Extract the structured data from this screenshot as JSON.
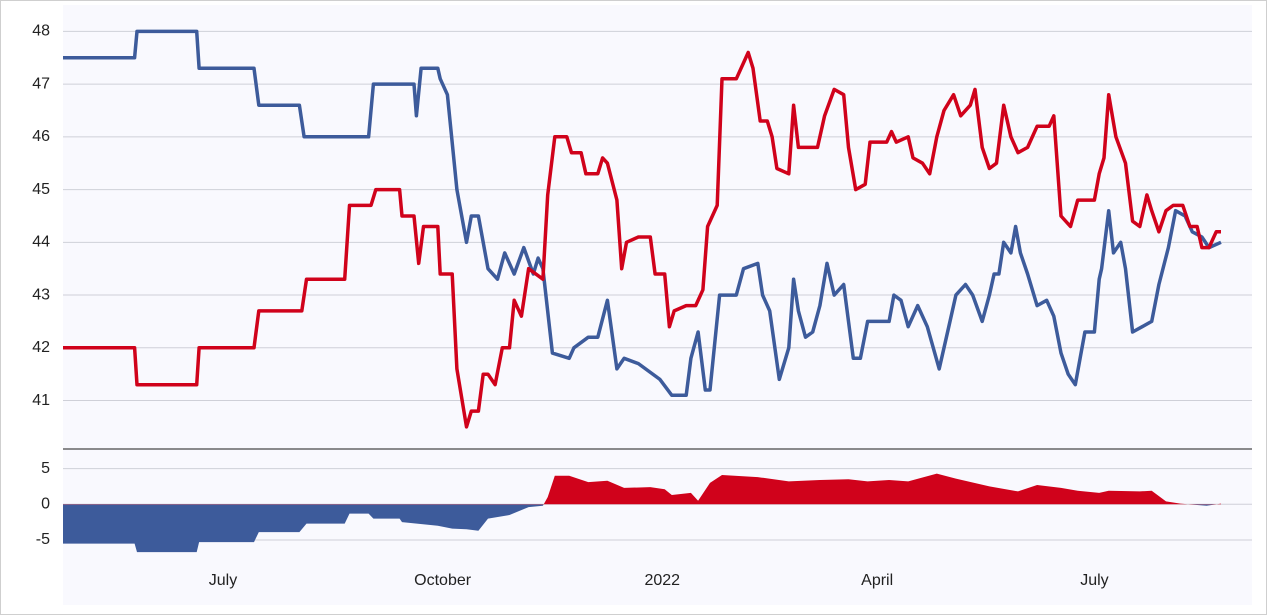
{
  "chart_data": [
    {
      "type": "line",
      "xlim": [
        "2021-04-25",
        "2022-09-05"
      ],
      "ylim": [
        40.1,
        48.5
      ],
      "yticks": [
        41,
        42,
        43,
        44,
        45,
        46,
        47,
        48
      ],
      "grid": true,
      "series": [
        {
          "color": "#3d5b9b",
          "x": [
            "2021-04-25",
            "2021-05-25",
            "2021-05-26",
            "2021-06-20",
            "2021-06-21",
            "2021-07-14",
            "2021-07-16",
            "2021-08-02",
            "2021-08-04",
            "2021-08-31",
            "2021-09-02",
            "2021-09-19",
            "2021-09-20",
            "2021-09-22",
            "2021-09-29",
            "2021-09-30",
            "2021-10-03",
            "2021-10-07",
            "2021-10-11",
            "2021-10-13",
            "2021-10-16",
            "2021-10-20",
            "2021-10-24",
            "2021-10-27",
            "2021-10-31",
            "2021-11-04",
            "2021-11-08",
            "2021-11-10",
            "2021-11-12",
            "2021-11-16",
            "2021-11-23",
            "2021-11-25",
            "2021-12-01",
            "2021-12-05",
            "2021-12-09",
            "2021-12-13",
            "2021-12-16",
            "2021-12-22",
            "2021-12-31",
            "2022-01-05",
            "2022-01-11",
            "2022-01-13",
            "2022-01-16",
            "2022-01-19",
            "2022-01-21",
            "2022-01-25",
            "2022-02-01",
            "2022-02-04",
            "2022-02-10",
            "2022-02-12",
            "2022-02-15",
            "2022-02-19",
            "2022-02-23",
            "2022-02-25",
            "2022-02-27",
            "2022-03-02",
            "2022-03-05",
            "2022-03-08",
            "2022-03-11",
            "2022-03-14",
            "2022-03-18",
            "2022-03-22",
            "2022-03-25",
            "2022-03-28",
            "2022-04-06",
            "2022-04-08",
            "2022-04-11",
            "2022-04-14",
            "2022-04-18",
            "2022-04-22",
            "2022-04-27",
            "2022-05-01",
            "2022-05-04",
            "2022-05-08",
            "2022-05-11",
            "2022-05-15",
            "2022-05-18",
            "2022-05-20",
            "2022-05-22",
            "2022-05-24",
            "2022-05-27",
            "2022-05-29",
            "2022-05-31",
            "2022-06-03",
            "2022-06-07",
            "2022-06-11",
            "2022-06-14",
            "2022-06-17",
            "2022-06-20",
            "2022-06-23",
            "2022-06-25",
            "2022-06-27",
            "2022-07-01",
            "2022-07-03",
            "2022-07-04",
            "2022-07-07",
            "2022-07-09",
            "2022-07-12",
            "2022-07-14",
            "2022-07-17",
            "2022-07-21",
            "2022-07-25",
            "2022-07-28",
            "2022-08-01",
            "2022-08-04",
            "2022-08-08",
            "2022-08-11",
            "2022-08-15",
            "2022-08-18",
            "2022-08-23"
          ],
          "values": [
            47.5,
            47.5,
            48,
            48,
            47.3,
            47.3,
            46.6,
            46.6,
            46.0,
            46.0,
            47.0,
            47.0,
            46.4,
            47.3,
            47.3,
            47.1,
            46.8,
            45.0,
            44.0,
            44.5,
            44.5,
            43.5,
            43.3,
            43.8,
            43.4,
            43.9,
            43.4,
            43.7,
            43.5,
            41.9,
            41.8,
            42.0,
            42.2,
            42.2,
            42.9,
            41.6,
            41.8,
            41.7,
            41.4,
            41.1,
            41.1,
            41.8,
            42.3,
            41.2,
            41.2,
            43.0,
            43.0,
            43.5,
            43.6,
            43.0,
            42.7,
            41.4,
            42.0,
            43.3,
            42.7,
            42.2,
            42.3,
            42.8,
            43.6,
            43.0,
            43.2,
            41.8,
            41.8,
            42.5,
            42.5,
            43.0,
            42.9,
            42.4,
            42.8,
            42.4,
            41.6,
            42.4,
            43.0,
            43.2,
            43.0,
            42.5,
            43.0,
            43.4,
            43.4,
            44.0,
            43.8,
            44.3,
            43.8,
            43.4,
            42.8,
            42.9,
            42.6,
            41.9,
            41.5,
            41.3,
            41.8,
            42.3,
            42.3,
            43.3,
            43.5,
            44.6,
            43.8,
            44.0,
            43.5,
            42.3,
            42.4,
            42.5,
            43.2,
            43.9,
            44.6,
            44.5,
            44.2,
            44.1,
            43.9,
            44.0
          ]
        },
        {
          "color": "#d0021b",
          "x": [
            "2021-04-25",
            "2021-05-25",
            "2021-05-26",
            "2021-06-20",
            "2021-06-21",
            "2021-07-14",
            "2021-07-16",
            "2021-08-03",
            "2021-08-05",
            "2021-08-21",
            "2021-08-23",
            "2021-09-01",
            "2021-09-03",
            "2021-09-13",
            "2021-09-14",
            "2021-09-19",
            "2021-09-21",
            "2021-09-23",
            "2021-09-29",
            "2021-09-30",
            "2021-10-05",
            "2021-10-07",
            "2021-10-11",
            "2021-10-13",
            "2021-10-16",
            "2021-10-18",
            "2021-10-20",
            "2021-10-23",
            "2021-10-26",
            "2021-10-29",
            "2021-10-31",
            "2021-11-03",
            "2021-11-06",
            "2021-11-12",
            "2021-11-14",
            "2021-11-17",
            "2021-11-22",
            "2021-11-24",
            "2021-11-28",
            "2021-11-30",
            "2021-12-05",
            "2021-12-07",
            "2021-12-09",
            "2021-12-13",
            "2021-12-15",
            "2021-12-17",
            "2021-12-22",
            "2021-12-27",
            "2021-12-29",
            "2022-01-02",
            "2022-01-04",
            "2022-01-06",
            "2022-01-11",
            "2022-01-15",
            "2022-01-18",
            "2022-01-20",
            "2022-01-24",
            "2022-01-26",
            "2022-02-01",
            "2022-02-06",
            "2022-02-08",
            "2022-02-11",
            "2022-02-14",
            "2022-02-16",
            "2022-02-18",
            "2022-02-23",
            "2022-02-25",
            "2022-02-27",
            "2022-03-07",
            "2022-03-10",
            "2022-03-14",
            "2022-03-18",
            "2022-03-20",
            "2022-03-23",
            "2022-03-27",
            "2022-03-29",
            "2022-04-05",
            "2022-04-07",
            "2022-04-09",
            "2022-04-14",
            "2022-04-16",
            "2022-04-20",
            "2022-04-23",
            "2022-04-26",
            "2022-04-29",
            "2022-05-03",
            "2022-05-06",
            "2022-05-10",
            "2022-05-12",
            "2022-05-15",
            "2022-05-18",
            "2022-05-21",
            "2022-05-24",
            "2022-05-27",
            "2022-05-30",
            "2022-06-03",
            "2022-06-07",
            "2022-06-12",
            "2022-06-14",
            "2022-06-17",
            "2022-06-21",
            "2022-06-24",
            "2022-07-01",
            "2022-07-03",
            "2022-07-05",
            "2022-07-07",
            "2022-07-10",
            "2022-07-14",
            "2022-07-17",
            "2022-07-20",
            "2022-07-23",
            "2022-07-25",
            "2022-07-28",
            "2022-07-31",
            "2022-08-03",
            "2022-08-07",
            "2022-08-10",
            "2022-08-13",
            "2022-08-15",
            "2022-08-18",
            "2022-08-21",
            "2022-08-23"
          ],
          "values": [
            42.0,
            42.0,
            41.3,
            41.3,
            42.0,
            42.0,
            42.7,
            42.7,
            43.3,
            43.3,
            44.7,
            44.7,
            45.0,
            45.0,
            44.5,
            44.5,
            43.6,
            44.3,
            44.3,
            43.4,
            43.4,
            41.6,
            40.5,
            40.8,
            40.8,
            41.5,
            41.5,
            41.3,
            42.0,
            42.0,
            42.9,
            42.6,
            43.5,
            43.3,
            44.9,
            46.0,
            46.0,
            45.7,
            45.7,
            45.3,
            45.3,
            45.6,
            45.5,
            44.8,
            43.5,
            44.0,
            44.1,
            44.1,
            43.4,
            43.4,
            42.4,
            42.7,
            42.8,
            42.8,
            43.1,
            44.3,
            44.7,
            47.1,
            47.1,
            47.6,
            47.3,
            46.3,
            46.3,
            46.0,
            45.4,
            45.3,
            46.6,
            45.8,
            45.8,
            46.4,
            46.9,
            46.8,
            45.8,
            45.0,
            45.1,
            45.9,
            45.9,
            46.1,
            45.9,
            46.0,
            45.6,
            45.5,
            45.3,
            46.0,
            46.5,
            46.8,
            46.4,
            46.6,
            46.9,
            45.8,
            45.4,
            45.5,
            46.6,
            46.0,
            45.7,
            45.8,
            46.2,
            46.2,
            46.4,
            44.5,
            44.3,
            44.8,
            44.8,
            45.3,
            45.6,
            46.8,
            46.0,
            45.5,
            44.4,
            44.3,
            44.9,
            44.6,
            44.2,
            44.6,
            44.7,
            44.7,
            44.3,
            44.3,
            43.9,
            43.9,
            44.2,
            44.2
          ]
        }
      ]
    },
    {
      "type": "area",
      "xlim": [
        "2021-04-25",
        "2022-09-05"
      ],
      "xticks": [
        {
          "value": "2021-07-01",
          "label": "July"
        },
        {
          "value": "2021-10-01",
          "label": "October"
        },
        {
          "value": "2022-01-01",
          "label": "2022"
        },
        {
          "value": "2022-04-01",
          "label": "April"
        },
        {
          "value": "2022-07-01",
          "label": "July"
        }
      ],
      "ylim": [
        -7.8,
        7.6
      ],
      "yticks": [
        -5,
        0,
        5
      ],
      "grid": true,
      "colors": {
        "positive": "#d0021b",
        "negative": "#3d5b9b"
      },
      "x": [
        "2021-04-25",
        "2021-05-25",
        "2021-05-26",
        "2021-06-20",
        "2021-06-21",
        "2021-07-14",
        "2021-07-16",
        "2021-08-02",
        "2021-08-05",
        "2021-08-21",
        "2021-08-23",
        "2021-08-31",
        "2021-09-02",
        "2021-09-13",
        "2021-09-14",
        "2021-09-29",
        "2021-10-05",
        "2021-10-11",
        "2021-10-16",
        "2021-10-20",
        "2021-10-29",
        "2021-11-06",
        "2021-11-12",
        "2021-11-14",
        "2021-11-17",
        "2021-11-23",
        "2021-12-01",
        "2021-12-09",
        "2021-12-16",
        "2021-12-27",
        "2022-01-02",
        "2022-01-05",
        "2022-01-13",
        "2022-01-16",
        "2022-01-21",
        "2022-01-26",
        "2022-02-10",
        "2022-02-23",
        "2022-03-08",
        "2022-03-20",
        "2022-03-28",
        "2022-04-06",
        "2022-04-14",
        "2022-04-26",
        "2022-05-04",
        "2022-05-18",
        "2022-05-30",
        "2022-06-07",
        "2022-06-17",
        "2022-06-24",
        "2022-07-03",
        "2022-07-07",
        "2022-07-20",
        "2022-07-25",
        "2022-07-31",
        "2022-08-06",
        "2022-08-13",
        "2022-08-17",
        "2022-08-23"
      ],
      "values": [
        -5.5,
        -5.5,
        -6.7,
        -6.7,
        -5.3,
        -5.3,
        -3.9,
        -3.9,
        -2.7,
        -2.7,
        -1.3,
        -1.3,
        -2.0,
        -2.0,
        -2.5,
        -3.0,
        -3.4,
        -3.5,
        -3.7,
        -2.0,
        -1.5,
        -0.4,
        -0.2,
        1.0,
        4.0,
        4.0,
        3.1,
        3.3,
        2.3,
        2.4,
        2.1,
        1.3,
        1.6,
        0.5,
        3.0,
        4.1,
        3.8,
        3.2,
        3.4,
        3.5,
        3.2,
        3.4,
        3.2,
        4.3,
        3.6,
        2.5,
        1.8,
        2.7,
        2.3,
        1.9,
        1.6,
        1.9,
        1.8,
        1.9,
        0.4,
        0.1,
        -0.1,
        -0.2,
        0.1
      ]
    }
  ]
}
